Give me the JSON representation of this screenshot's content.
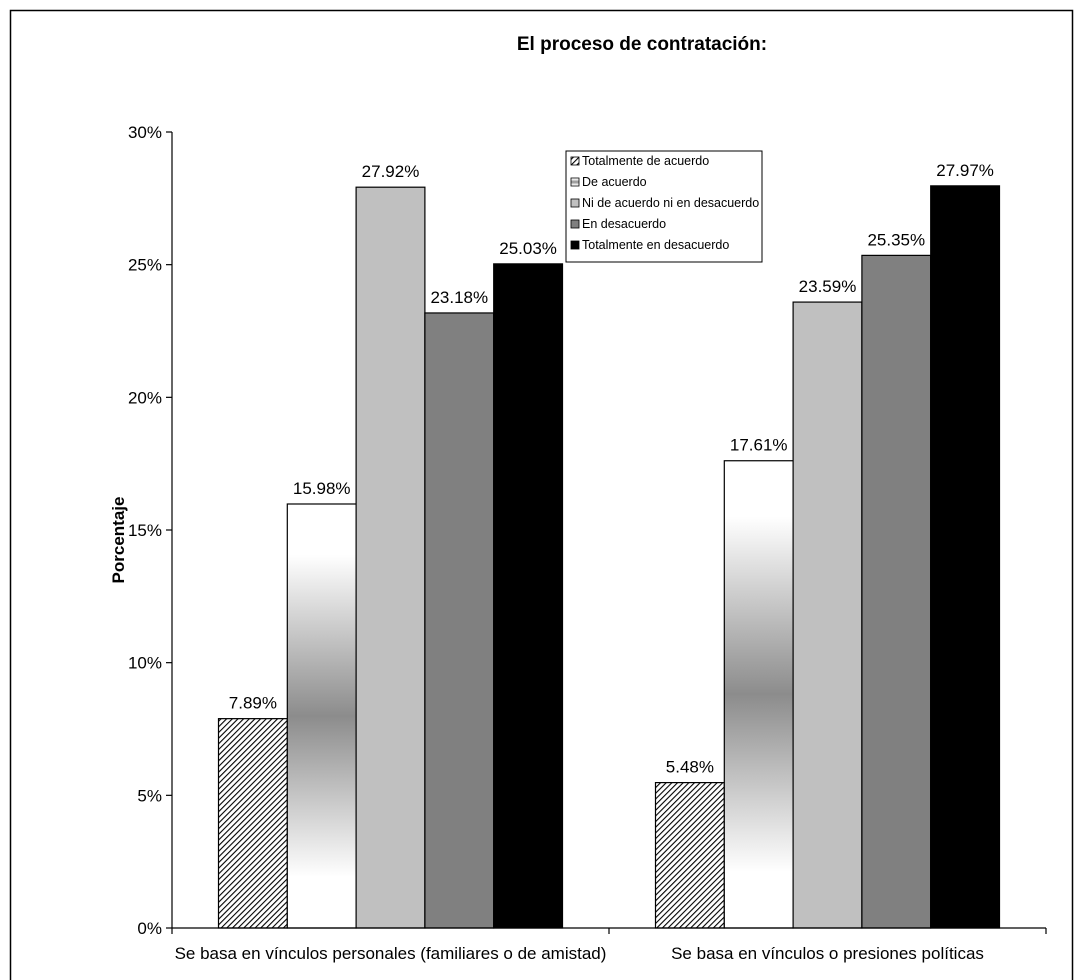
{
  "chart_data": {
    "type": "bar",
    "title": "El proceso de contratación:",
    "xlabel": "",
    "ylabel": "Porcentaje",
    "ylim": [
      0,
      30
    ],
    "yticks": [
      "0%",
      "5%",
      "10%",
      "15%",
      "20%",
      "25%",
      "30%"
    ],
    "grid": false,
    "legend_position": "top-right",
    "categories": [
      "Se basa en vínculos personales (familiares o de amistad)",
      "Se basa en vínculos o presiones políticas"
    ],
    "series": [
      {
        "name": "Totalmente de acuerdo",
        "values": [
          7.89,
          5.48
        ],
        "labels": [
          "7.89%",
          "5.48%"
        ],
        "fill": "hatch"
      },
      {
        "name": "De acuerdo",
        "values": [
          15.98,
          17.61
        ],
        "labels": [
          "15.98%",
          "17.61%"
        ],
        "fill": "gradient"
      },
      {
        "name": "Ni de acuerdo ni en desacuerdo",
        "values": [
          27.92,
          23.59
        ],
        "labels": [
          "27.92%",
          "23.59%"
        ],
        "fill": "#c0c0c0"
      },
      {
        "name": "En desacuerdo",
        "values": [
          23.18,
          25.35
        ],
        "labels": [
          "23.18%",
          "25.35%"
        ],
        "fill": "#808080"
      },
      {
        "name": "Totalmente en desacuerdo",
        "values": [
          25.03,
          27.97
        ],
        "labels": [
          "25.03%",
          "27.97%"
        ],
        "fill": "#000000"
      }
    ]
  }
}
